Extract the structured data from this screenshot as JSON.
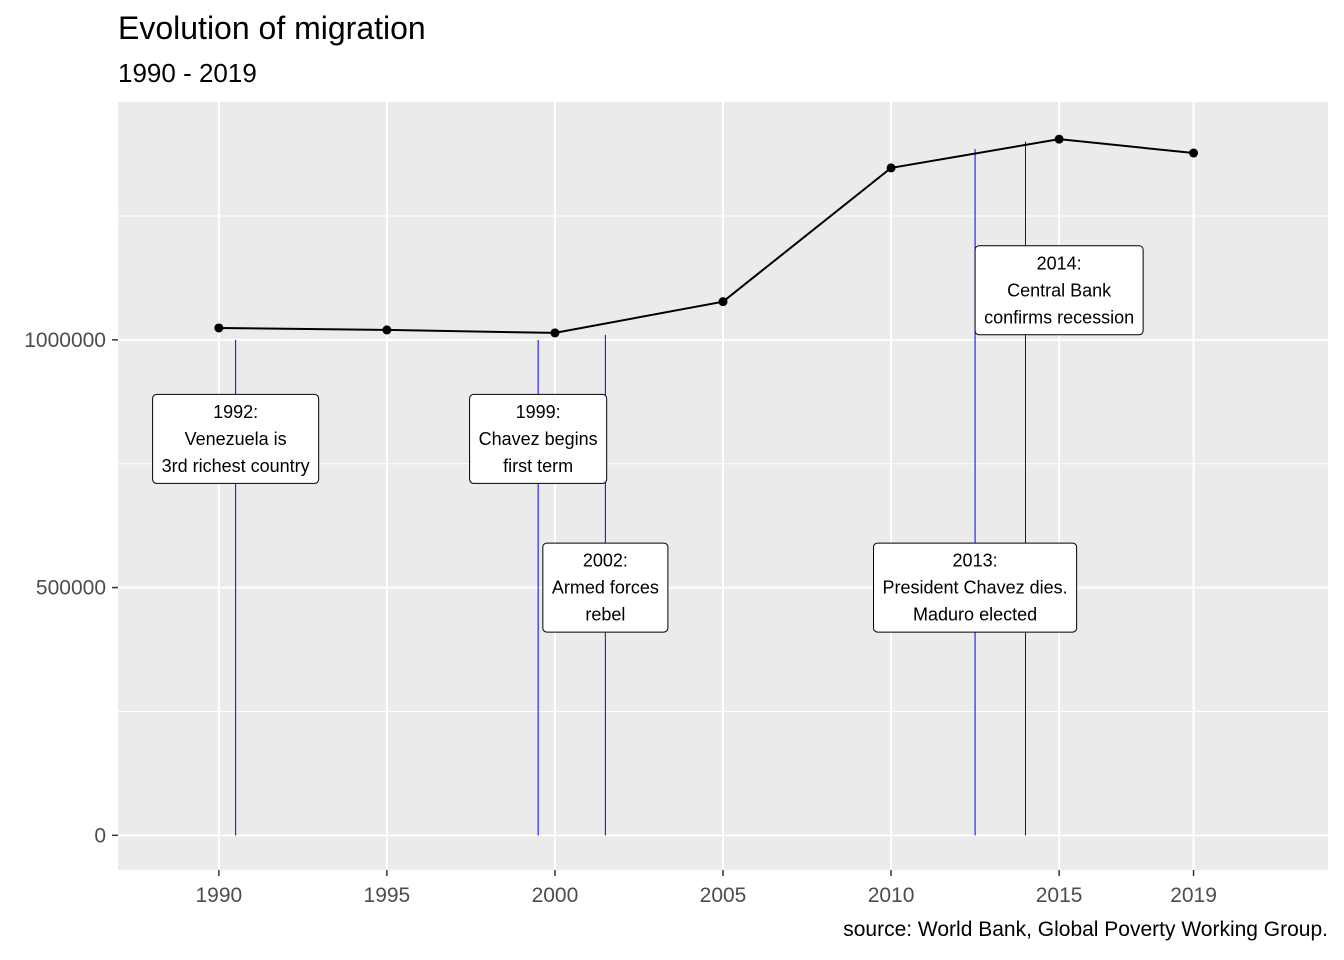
{
  "header": {
    "title": "Evolution of migration",
    "subtitle": "1990 - 2019",
    "caption": "source: World Bank, Global Poverty Working Group."
  },
  "colors": {
    "panel": "#ebebeb",
    "grid": "#ffffff",
    "line": "#000000",
    "event_line": "#0000ff"
  },
  "chart_data": {
    "type": "line",
    "title": "Evolution of migration",
    "subtitle": "1990 - 2019",
    "xlabel": "",
    "ylabel": "",
    "x_ticks": [
      1990,
      1995,
      2000,
      2005,
      2010,
      2015,
      2019
    ],
    "y_ticks": [
      0,
      500000,
      1000000
    ],
    "xlim": [
      1987,
      2023
    ],
    "ylim": [
      -70000,
      1480000
    ],
    "grid": true,
    "series": [
      {
        "x": [
          1990,
          1995,
          2000,
          2005,
          2010,
          2015,
          2019
        ],
        "values": [
          1024000,
          1020000,
          1014000,
          1077000,
          1347000,
          1405000,
          1377000
        ]
      }
    ],
    "events": [
      {
        "x": 1990.5,
        "y_top": 1000000
      },
      {
        "x": 1999.5,
        "y_top": 1000000
      },
      {
        "x": 2001.5,
        "y_top": 1010000
      },
      {
        "x": 2012.5,
        "y_top": 1385000
      },
      {
        "x": 2014,
        "y_top": 1400000
      }
    ],
    "annotations": [
      {
        "lines": [
          "1992:",
          "Venezuela is",
          "3rd richest country"
        ],
        "x": 1990.5,
        "y": 800000
      },
      {
        "lines": [
          "1999:",
          "Chavez begins",
          "first term"
        ],
        "x": 1999.5,
        "y": 800000
      },
      {
        "lines": [
          "2002:",
          "Armed forces",
          "rebel"
        ],
        "x": 2001.5,
        "y": 500000
      },
      {
        "lines": [
          "2013:",
          "President Chavez dies.",
          "Maduro elected"
        ],
        "x": 2012.5,
        "y": 500000
      },
      {
        "lines": [
          "2014:",
          "Central Bank",
          "confirms recession"
        ],
        "x": 2015,
        "y": 1100000
      }
    ]
  }
}
